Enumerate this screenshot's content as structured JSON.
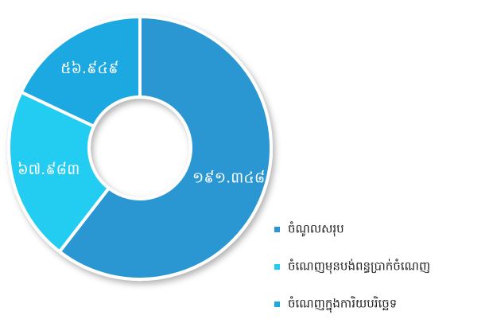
{
  "chart_data": {
    "type": "donut",
    "categories": [
      "ចំណូលសរុប",
      "ចំណេញមុនបង់ពន្ធប្រាក់ចំណេញ",
      "ចំណេញក្នុងការិយបរិច្ឆេទ"
    ],
    "values": [
      191.348,
      67.983,
      56.949
    ],
    "value_labels": [
      "១៩១.៣៤៨",
      "៦៧.៩៨៣",
      "៥៦.៩៤៩"
    ],
    "colors": [
      "#2b97d2",
      "#20cdf1",
      "#1ca9e2"
    ]
  }
}
